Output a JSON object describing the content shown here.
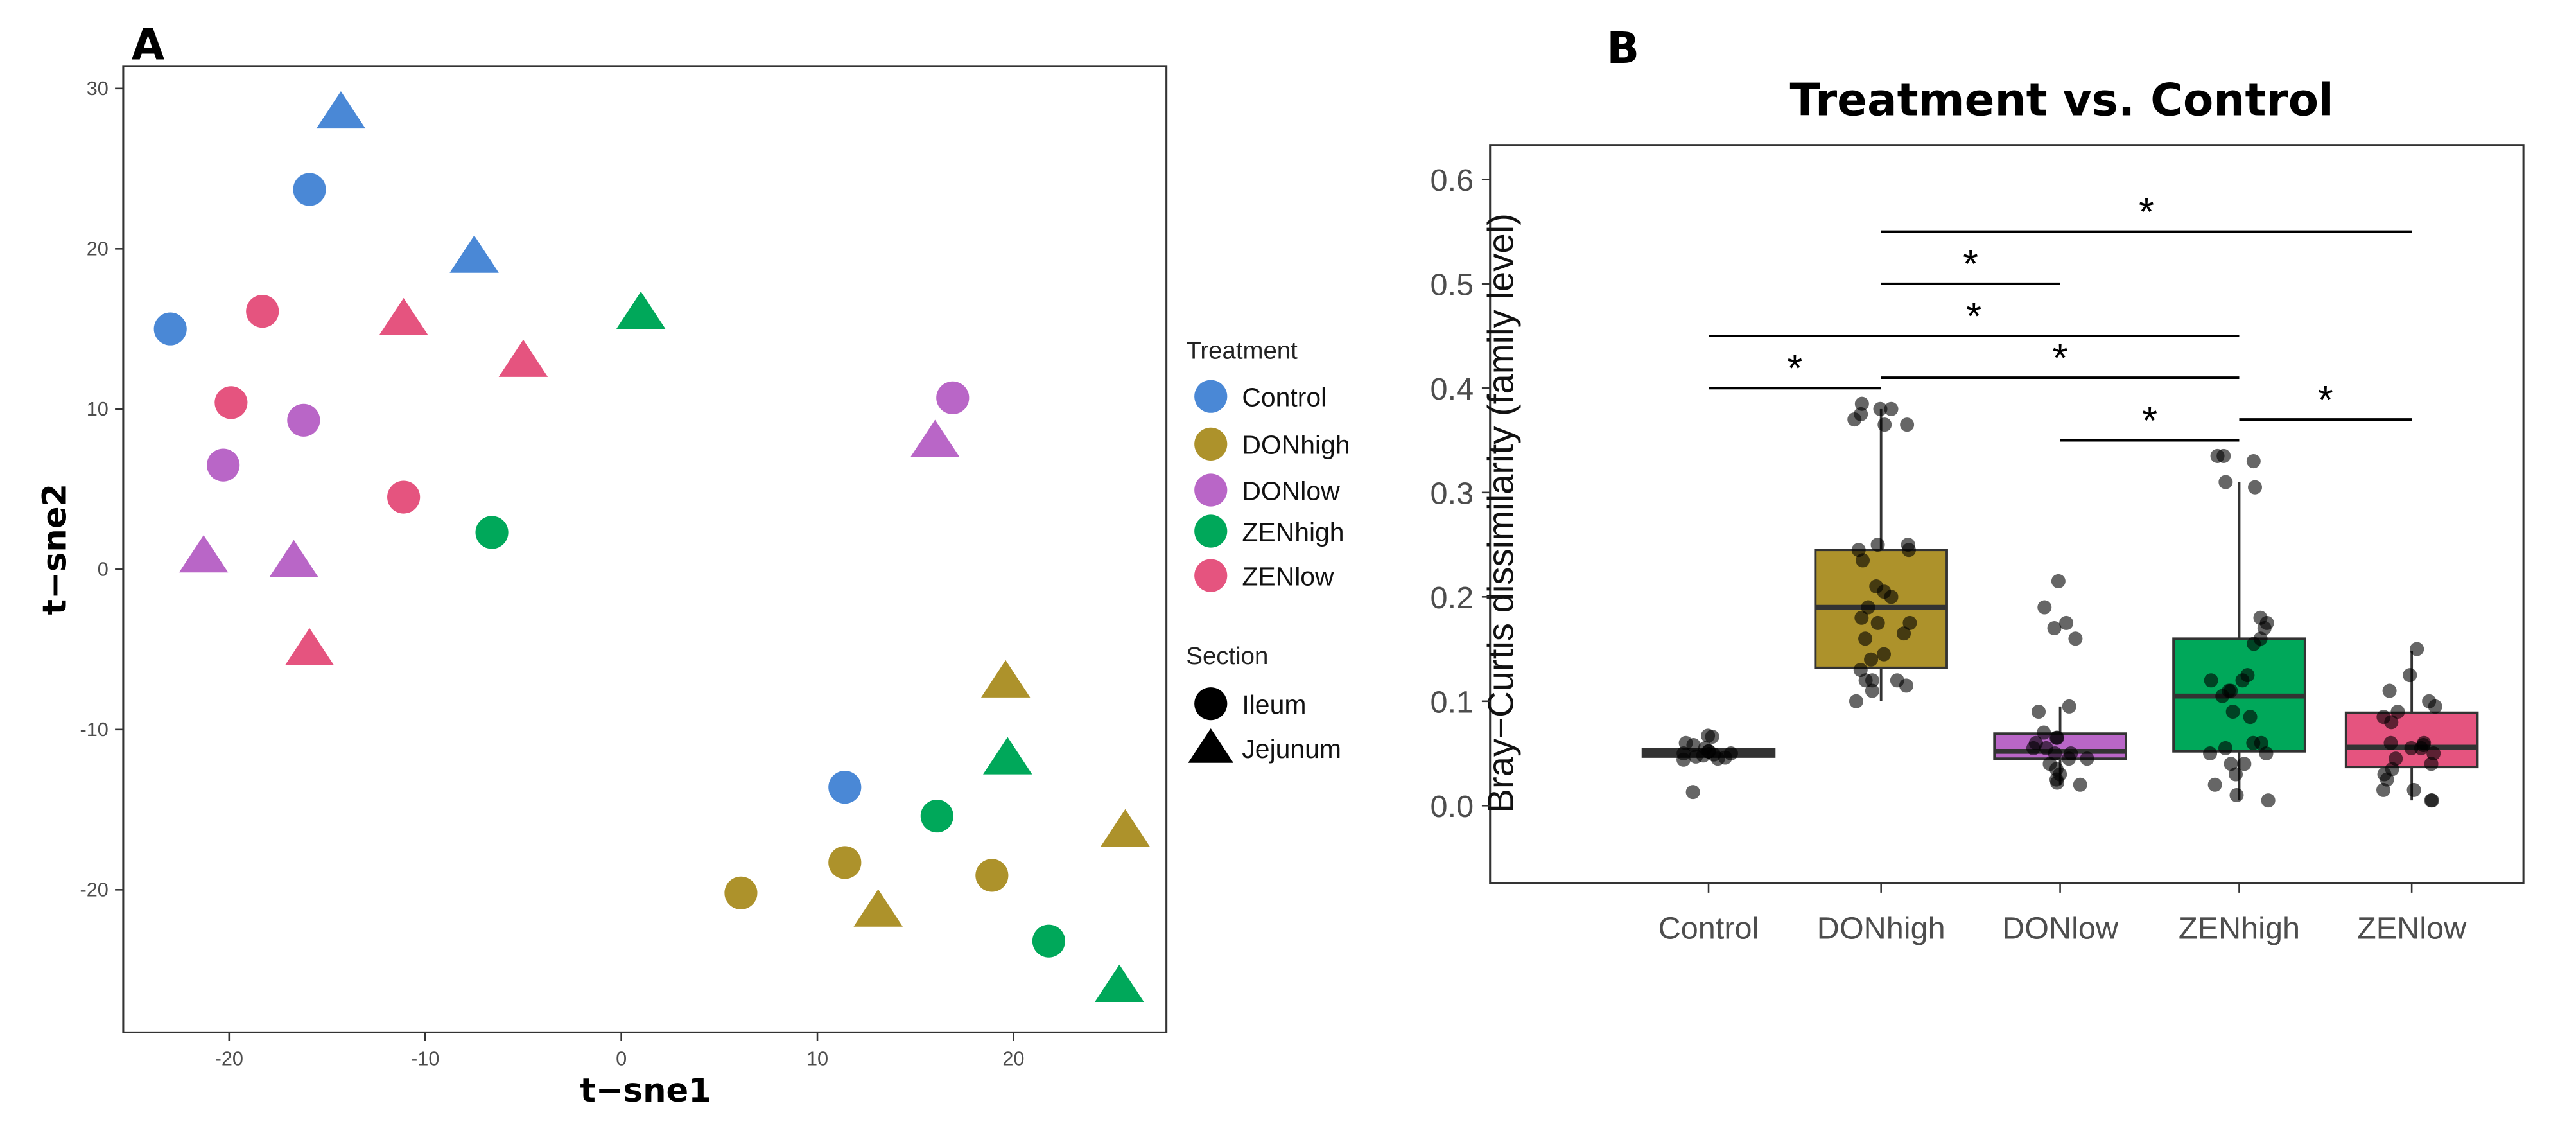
{
  "chart_data": [
    {
      "type": "scatter",
      "panel_label": "A",
      "xlabel": "t−sne1",
      "ylabel": "t−sne2",
      "xlim": [
        -25.4,
        27.8
      ],
      "ylim": [
        -28.9,
        31.4
      ],
      "xticks": [
        -20,
        -10,
        0,
        10,
        20
      ],
      "yticks": [
        -20,
        -10,
        0,
        10,
        20,
        30
      ],
      "grid": false,
      "legend": {
        "placement": "right",
        "treatment_title": "Treatment",
        "section_title": "Section",
        "sections": [
          {
            "name": "Ileum",
            "shape": "circle"
          },
          {
            "name": "Jejunum",
            "shape": "triangle"
          }
        ]
      },
      "series": [
        {
          "name": "Control",
          "color": "#4A88D6",
          "points": [
            {
              "x": -15.9,
              "y": 23.7,
              "section": "Ileum"
            },
            {
              "x": -23.0,
              "y": 15.0,
              "section": "Ileum"
            },
            {
              "x": 11.4,
              "y": -13.6,
              "section": "Ileum"
            },
            {
              "x": -14.3,
              "y": 28.5,
              "section": "Jejunum"
            },
            {
              "x": -7.5,
              "y": 19.5,
              "section": "Jejunum"
            }
          ]
        },
        {
          "name": "DONhigh",
          "color": "#AD922B",
          "points": [
            {
              "x": 6.1,
              "y": -20.2,
              "section": "Ileum"
            },
            {
              "x": 11.4,
              "y": -18.3,
              "section": "Ileum"
            },
            {
              "x": 18.9,
              "y": -19.1,
              "section": "Ileum"
            },
            {
              "x": 19.6,
              "y": -7.0,
              "section": "Jejunum"
            },
            {
              "x": 25.7,
              "y": -16.3,
              "section": "Jejunum"
            },
            {
              "x": 13.1,
              "y": -21.3,
              "section": "Jejunum"
            }
          ]
        },
        {
          "name": "DONlow",
          "color": "#B966C7",
          "points": [
            {
              "x": 16.9,
              "y": 10.7,
              "section": "Ileum"
            },
            {
              "x": -16.2,
              "y": 9.3,
              "section": "Ileum"
            },
            {
              "x": -20.3,
              "y": 6.5,
              "section": "Ileum"
            },
            {
              "x": 16.0,
              "y": 8.0,
              "section": "Jejunum"
            },
            {
              "x": -21.3,
              "y": 0.8,
              "section": "Jejunum"
            },
            {
              "x": -16.7,
              "y": 0.5,
              "section": "Jejunum"
            }
          ]
        },
        {
          "name": "ZENhigh",
          "color": "#00A85A",
          "points": [
            {
              "x": -6.6,
              "y": 2.3,
              "section": "Ileum"
            },
            {
              "x": 16.1,
              "y": -15.4,
              "section": "Ileum"
            },
            {
              "x": 21.8,
              "y": -23.2,
              "section": "Ileum"
            },
            {
              "x": 1.0,
              "y": 16.0,
              "section": "Jejunum"
            },
            {
              "x": 19.7,
              "y": -11.8,
              "section": "Jejunum"
            },
            {
              "x": 25.4,
              "y": -26.0,
              "section": "Jejunum"
            }
          ]
        },
        {
          "name": "ZENlow",
          "color": "#E5547F",
          "points": [
            {
              "x": -18.3,
              "y": 16.1,
              "section": "Ileum"
            },
            {
              "x": -19.9,
              "y": 10.4,
              "section": "Ileum"
            },
            {
              "x": -11.1,
              "y": 4.5,
              "section": "Ileum"
            },
            {
              "x": -11.1,
              "y": 15.6,
              "section": "Jejunum"
            },
            {
              "x": -5.0,
              "y": 13.0,
              "section": "Jejunum"
            },
            {
              "x": -15.9,
              "y": -5.0,
              "section": "Jejunum"
            }
          ]
        }
      ]
    },
    {
      "type": "box",
      "panel_label": "B",
      "title": "Treatment vs. Control",
      "xlabel": "",
      "ylabel": "Bray−Curtis dissimilarity (family level)",
      "ylim": [
        -0.074,
        0.633
      ],
      "yticks": [
        "0.0",
        "0.1",
        "0.2",
        "0.3",
        "0.4",
        "0.5",
        "0.6"
      ],
      "grid": false,
      "categories": [
        "Control",
        "DONhigh",
        "DONlow",
        "ZENhigh",
        "ZENlow"
      ],
      "boxes": [
        {
          "name": "Control",
          "color": "#333333",
          "whisker_low": 0.045,
          "q1": 0.047,
          "median": 0.05,
          "q3": 0.054,
          "whisker_high": 0.056,
          "points": [
            0.067,
            0.066,
            0.06,
            0.058,
            0.055,
            0.052,
            0.05,
            0.05,
            0.049,
            0.048,
            0.047,
            0.046,
            0.045,
            0.044,
            0.052,
            0.013
          ]
        },
        {
          "name": "DONhigh",
          "color": "#AD922B",
          "whisker_low": 0.1,
          "q1": 0.132,
          "median": 0.19,
          "q3": 0.245,
          "whisker_high": 0.38,
          "points": [
            0.38,
            0.375,
            0.365,
            0.38,
            0.385,
            0.37,
            0.365,
            0.245,
            0.245,
            0.25,
            0.25,
            0.235,
            0.21,
            0.205,
            0.2,
            0.19,
            0.18,
            0.175,
            0.175,
            0.16,
            0.145,
            0.14,
            0.13,
            0.12,
            0.12,
            0.11,
            0.1,
            0.115,
            0.12,
            0.165
          ]
        },
        {
          "name": "DONlow",
          "color": "#B966C7",
          "whisker_low": 0.02,
          "q1": 0.045,
          "median": 0.052,
          "q3": 0.069,
          "whisker_high": 0.095,
          "points": [
            0.215,
            0.19,
            0.175,
            0.17,
            0.16,
            0.095,
            0.09,
            0.07,
            0.065,
            0.06,
            0.055,
            0.05,
            0.05,
            0.045,
            0.045,
            0.04,
            0.035,
            0.03,
            0.025,
            0.02,
            0.022,
            0.065,
            0.055
          ]
        },
        {
          "name": "ZENhigh",
          "color": "#00A85A",
          "whisker_low": 0.005,
          "q1": 0.052,
          "median": 0.105,
          "q3": 0.16,
          "whisker_high": 0.31,
          "points": [
            0.335,
            0.33,
            0.335,
            0.31,
            0.305,
            0.18,
            0.175,
            0.17,
            0.16,
            0.155,
            0.125,
            0.12,
            0.12,
            0.11,
            0.11,
            0.105,
            0.09,
            0.085,
            0.06,
            0.055,
            0.05,
            0.05,
            0.04,
            0.04,
            0.03,
            0.02,
            0.005,
            0.01,
            0.06
          ]
        },
        {
          "name": "ZENlow",
          "color": "#E5547F",
          "whisker_low": 0.005,
          "q1": 0.037,
          "median": 0.056,
          "q3": 0.089,
          "whisker_high": 0.148,
          "points": [
            0.15,
            0.125,
            0.11,
            0.1,
            0.095,
            0.09,
            0.085,
            0.08,
            0.06,
            0.058,
            0.055,
            0.05,
            0.045,
            0.04,
            0.035,
            0.03,
            0.025,
            0.015,
            0.015,
            0.005,
            0.005,
            0.06,
            0.055
          ]
        }
      ],
      "significance": [
        {
          "from": "Control",
          "to": "DONhigh",
          "y": 0.4,
          "label": "*"
        },
        {
          "from": "Control",
          "to": "ZENhigh",
          "y": 0.45,
          "label": "*"
        },
        {
          "from": "DONhigh",
          "to": "DONlow",
          "y": 0.5,
          "label": "*"
        },
        {
          "from": "DONhigh",
          "to": "ZENlow",
          "y": 0.55,
          "label": "*"
        },
        {
          "from": "DONhigh",
          "to": "ZENhigh",
          "y": 0.41,
          "label": "*"
        },
        {
          "from": "DONlow",
          "to": "ZENhigh",
          "y": 0.35,
          "label": "*"
        },
        {
          "from": "ZENhigh",
          "to": "ZENlow",
          "y": 0.37,
          "label": "*"
        }
      ]
    }
  ]
}
